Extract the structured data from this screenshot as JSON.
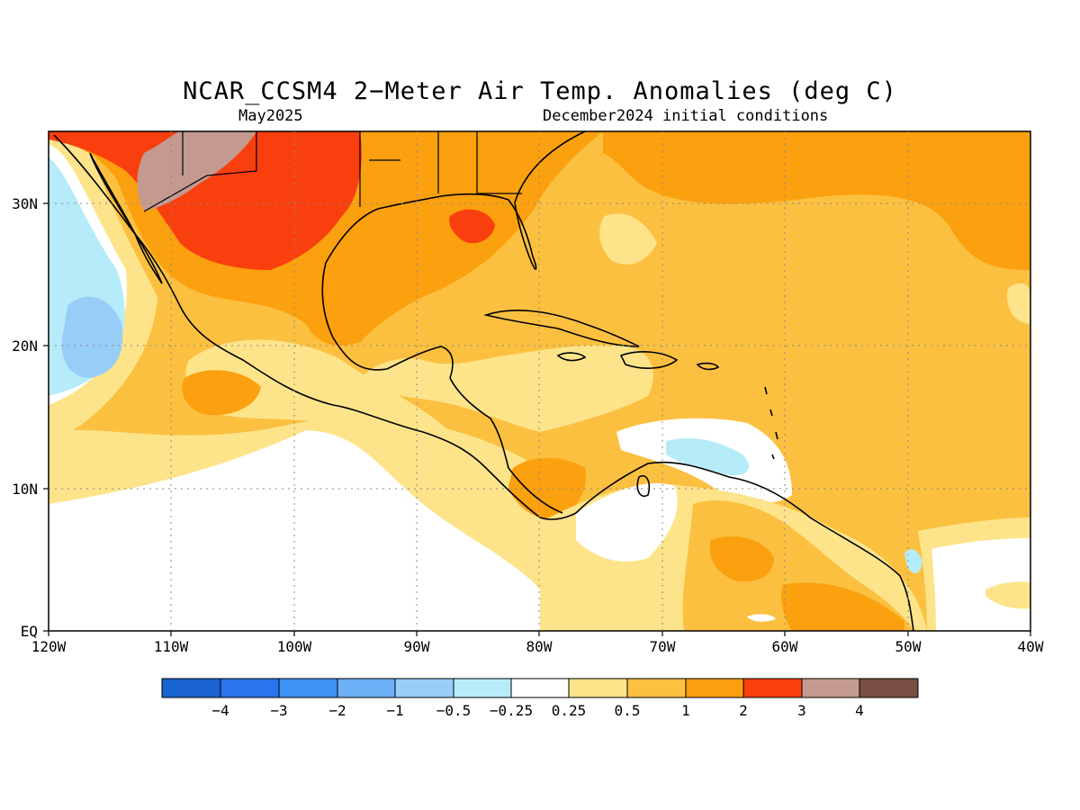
{
  "title": "NCAR_CCSM4 2−Meter Air Temp. Anomalies (deg C)",
  "subtitle_left": "May2025",
  "subtitle_right": "December2024 initial conditions",
  "axes": {
    "lat_labels": [
      "30N",
      "20N",
      "10N",
      "EQ"
    ],
    "lon_labels": [
      "120W",
      "110W",
      "100W",
      "90W",
      "80W",
      "70W",
      "60W",
      "50W",
      "40W"
    ]
  },
  "colorbar": {
    "labels": [
      "−4",
      "−3",
      "−2",
      "−1",
      "−0.5",
      "−0.25",
      "0.25",
      "0.5",
      "1",
      "2",
      "3",
      "4"
    ],
    "colors": [
      "#1a63d2",
      "#2a74ee",
      "#3e93f5",
      "#6eb0f6",
      "#98cdf8",
      "#b6ecfa",
      "#ffffff",
      "#fde48a",
      "#fcc040",
      "#fba00f",
      "#fa3f0e",
      "#c49a90",
      "#7a4e42"
    ]
  },
  "map": {
    "region": "Caribbean / Central America",
    "lon_range": [
      "120W",
      "40W"
    ],
    "lat_range": [
      "EQ",
      "35N"
    ],
    "land_outline_color": "#000000",
    "grid": "dotted"
  }
}
